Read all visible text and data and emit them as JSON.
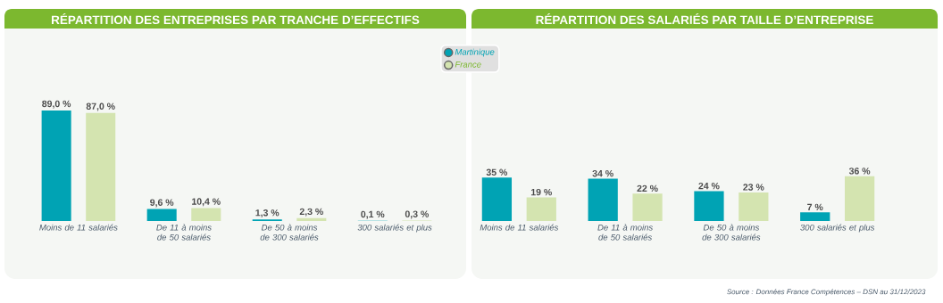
{
  "chart_data": [
    {
      "type": "bar",
      "title": "RÉPARTITION DES ENTREPRISES PAR TRANCHE D’EFFECTIFS",
      "categories": [
        "Moins de 11 salariés",
        "De 11 à moins de 50 salariés",
        "De 50 à moins de 300 salariés",
        "300 salariés et plus"
      ],
      "tick_labels": "x",
      "legend": "top right",
      "series": [
        {
          "name": "Martinique",
          "color": "#00a3b4",
          "values": [
            89.0,
            9.6,
            1.3,
            0.1
          ],
          "value_labels": [
            "89,0 %",
            "9,6 %",
            "1,3 %",
            "0,1 %"
          ]
        },
        {
          "name": "France",
          "color": "#d4e4b0",
          "values": [
            87.0,
            10.4,
            2.3,
            0.3
          ],
          "value_labels": [
            "87,0 %",
            "10,4 %",
            "2,3 %",
            "0,3 %"
          ]
        }
      ]
    },
    {
      "type": "bar",
      "title": "RÉPARTITION DES SALARIÉS PAR TAILLE D’ENTREPRISE",
      "categories": [
        "Moins de 11 salariés",
        "De 11 à moins de 50 salariés",
        "De 50 à moins de 300 salariés",
        "300 salariés et plus"
      ],
      "tick_labels": "x",
      "annotations": [
        "Source :  Données France Compétences – DSN au 31/12/2023"
      ],
      "series": [
        {
          "color": "#00a3b4",
          "values": [
            35,
            34,
            24,
            7
          ],
          "value_labels": [
            "35 %",
            "34 %",
            "24 %",
            "7 %"
          ]
        },
        {
          "color": "#d4e4b0",
          "values": [
            19,
            22,
            23,
            36
          ],
          "value_labels": [
            "19 %",
            "22 %",
            "23 %",
            "36 %"
          ]
        }
      ]
    }
  ]
}
